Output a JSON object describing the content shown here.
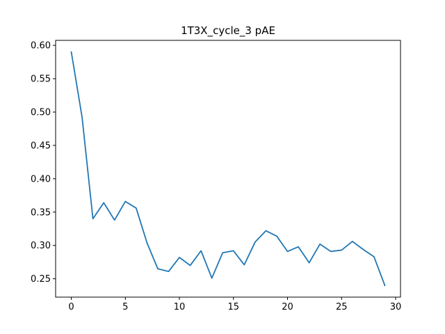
{
  "chart_data": {
    "type": "line",
    "title": "1T3X_cycle_3 pAE",
    "xlabel": "",
    "ylabel": "",
    "xlim": [
      -1.45,
      30.45
    ],
    "ylim": [
      0.2225,
      0.6075
    ],
    "xticks": [
      0,
      5,
      10,
      15,
      20,
      25,
      30
    ],
    "yticks": [
      0.25,
      0.3,
      0.35,
      0.4,
      0.45,
      0.5,
      0.55,
      0.6
    ],
    "ytick_labels": [
      "0.25",
      "0.30",
      "0.35",
      "0.40",
      "0.45",
      "0.50",
      "0.55",
      "0.60"
    ],
    "grid": false,
    "legend": "none",
    "series": [
      {
        "color": "#1f77b4",
        "x": [
          0,
          1,
          2,
          3,
          4,
          5,
          6,
          7,
          8,
          9,
          10,
          11,
          12,
          13,
          14,
          15,
          16,
          17,
          18,
          19,
          20,
          21,
          22,
          23,
          24,
          25,
          26,
          27,
          28,
          29
        ],
        "values": [
          0.59,
          0.492,
          0.34,
          0.364,
          0.338,
          0.366,
          0.356,
          0.304,
          0.265,
          0.261,
          0.282,
          0.27,
          0.292,
          0.251,
          0.289,
          0.292,
          0.271,
          0.305,
          0.322,
          0.314,
          0.291,
          0.298,
          0.274,
          0.302,
          0.291,
          0.293,
          0.306,
          0.294,
          0.283,
          0.24
        ]
      }
    ]
  }
}
